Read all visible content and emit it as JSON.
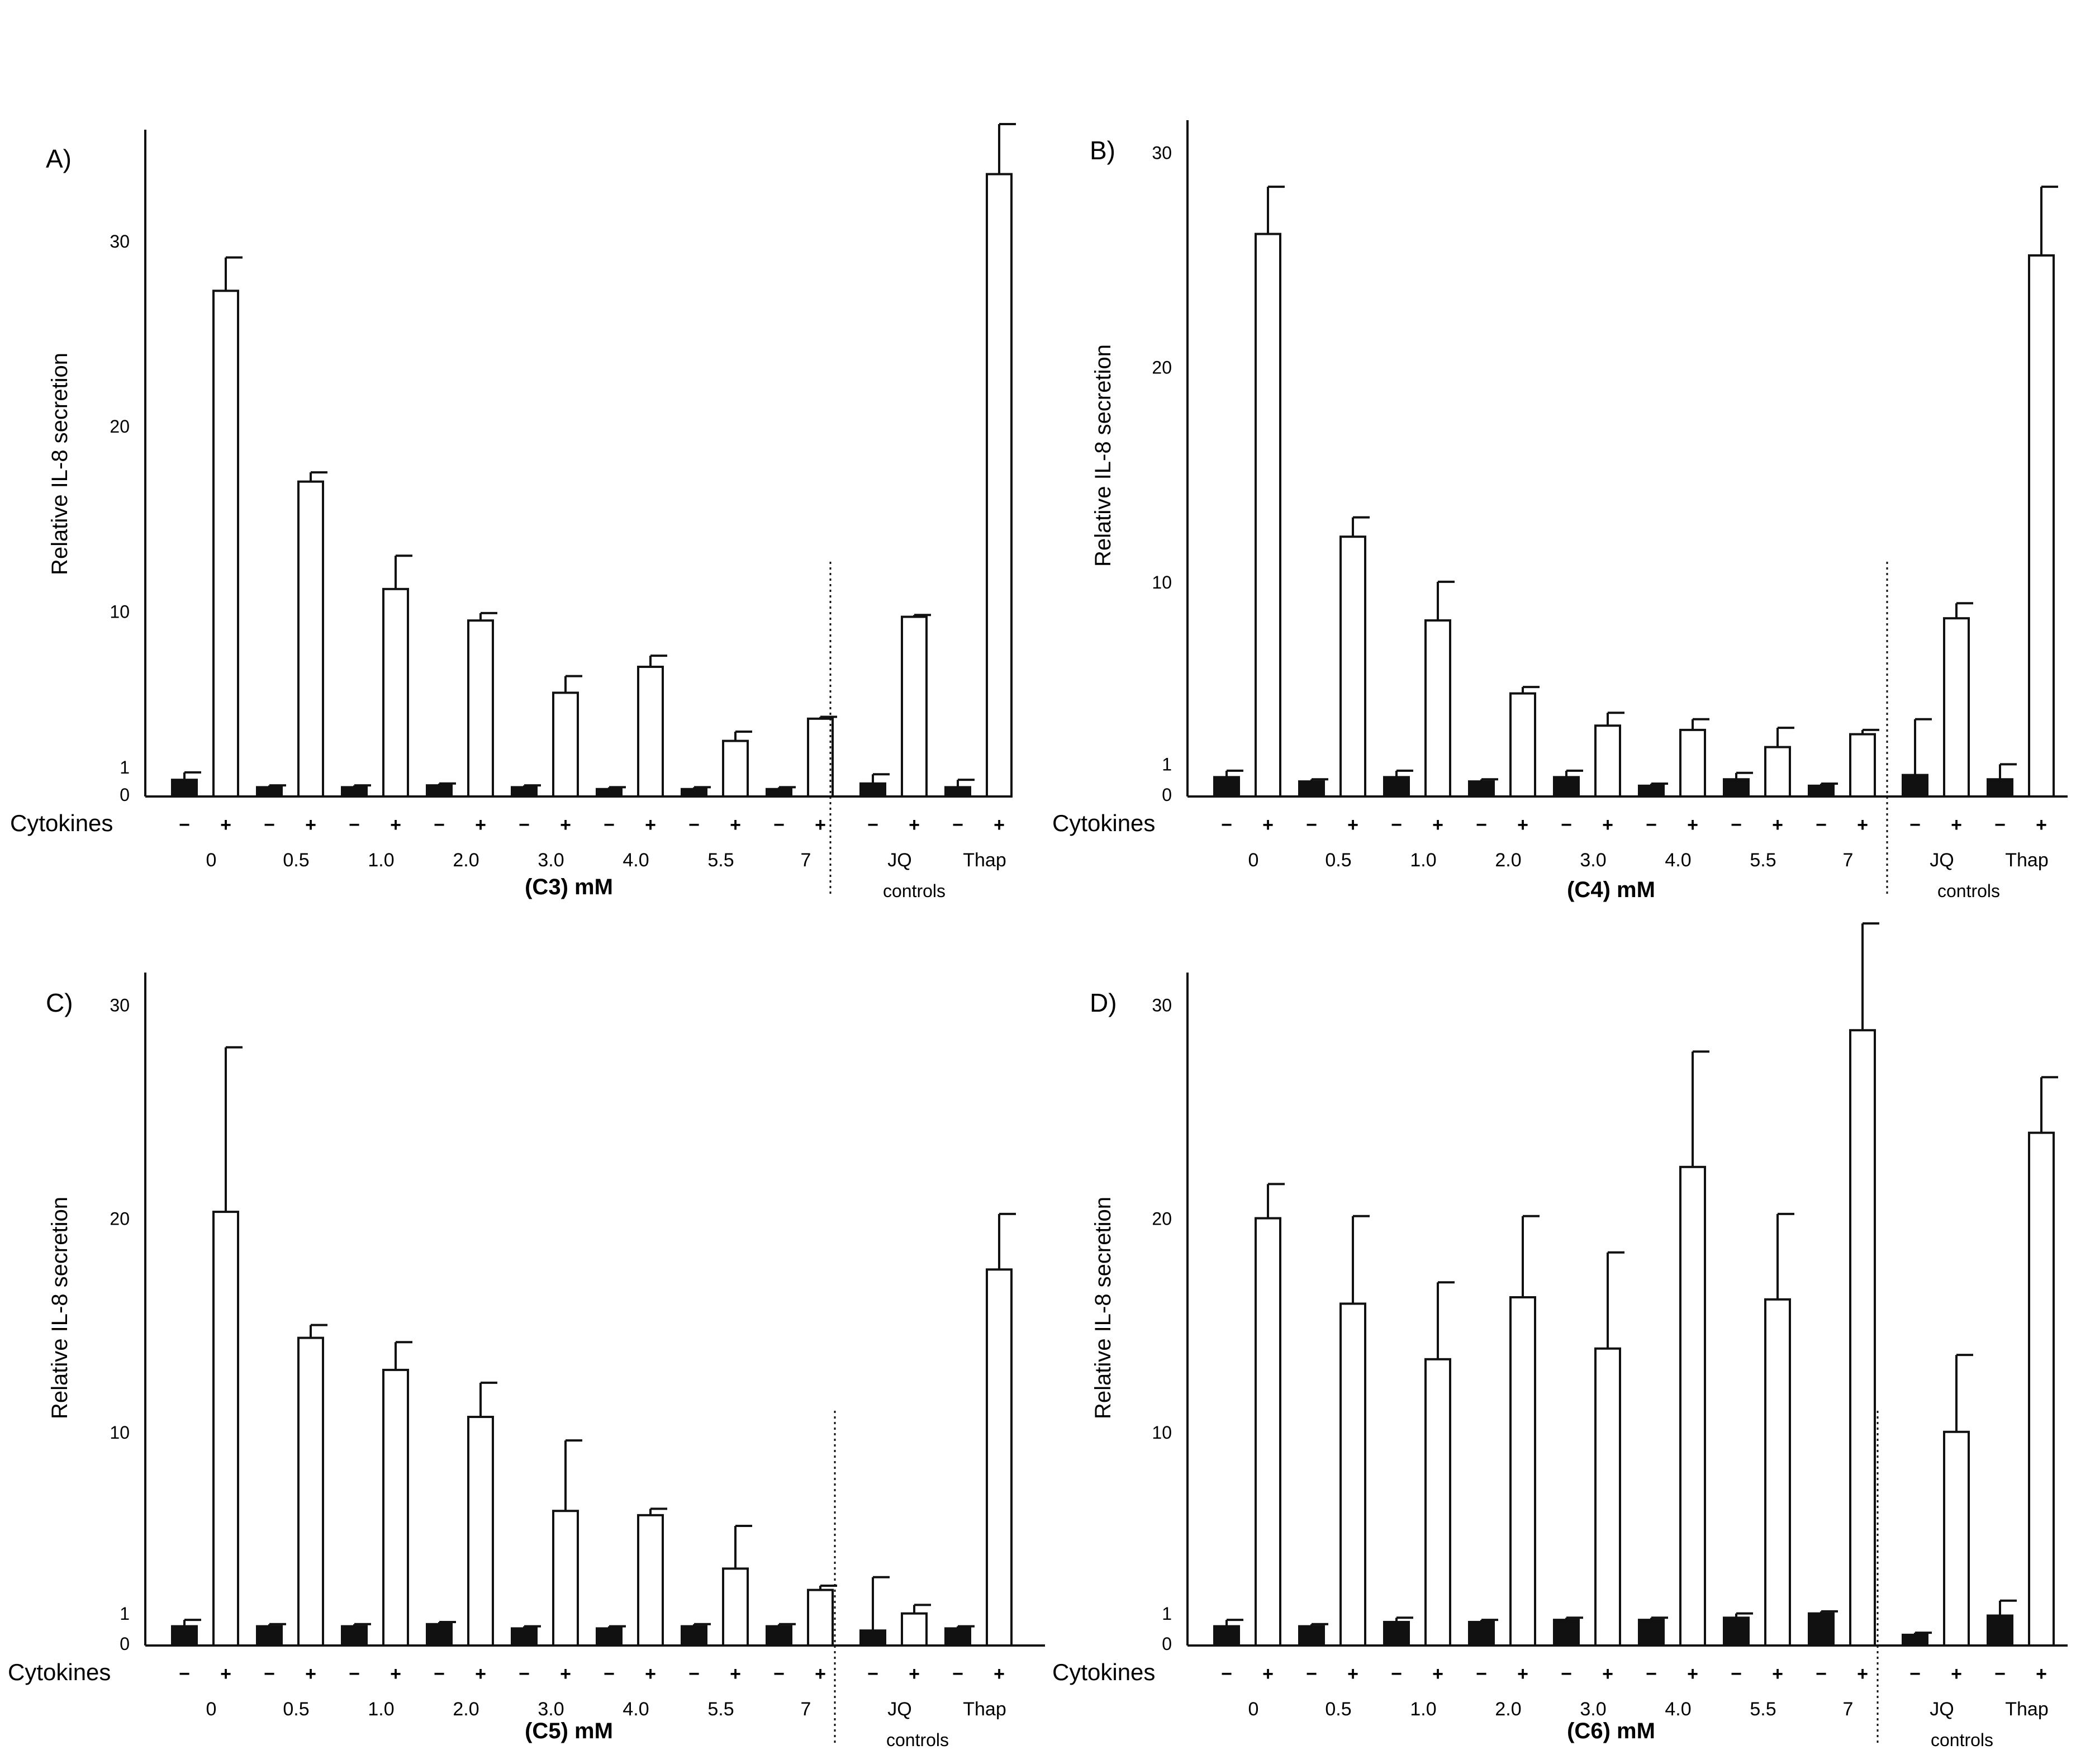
{
  "chart_data": [
    {
      "type": "bar",
      "panel": "A)",
      "ylabel": "Relative IL-8 secretion",
      "xlabel": "(C3) mM",
      "yticks": [
        0,
        1,
        10,
        20,
        30
      ],
      "ylim": [
        0,
        36
      ],
      "categories": [
        "0",
        "0.5",
        "1.0",
        "2.0",
        "3.0",
        "4.0",
        "5.5",
        "7",
        "JQ",
        "Thap"
      ],
      "row_label": "Cytokines",
      "sign_labels": [
        "−",
        "+"
      ],
      "group_label": "controls",
      "series": [
        {
          "values": [
            0.9,
            0.5,
            0.5,
            0.6,
            0.5,
            0.4,
            0.4,
            0.4,
            0.7,
            0.5
          ],
          "errors": [
            0.4,
            0.1,
            0.1,
            0.1,
            0.1,
            0.1,
            0.1,
            0.1,
            0.5,
            0.4
          ],
          "fill": "black"
        },
        {
          "values": [
            27.3,
            17.0,
            11.2,
            9.5,
            5.6,
            7.0,
            3.0,
            4.2,
            9.7,
            33.6
          ],
          "errors": [
            1.8,
            0.5,
            1.8,
            0.4,
            0.9,
            0.6,
            0.5,
            0.1,
            0.1,
            2.7
          ],
          "fill": "white"
        }
      ]
    },
    {
      "type": "bar",
      "panel": "B)",
      "ylabel": "Relative IL-8 secretion",
      "xlabel": "(C4) mM",
      "yticks": [
        0,
        1,
        10,
        20,
        30
      ],
      "ylim": [
        0,
        31.5
      ],
      "categories": [
        "0",
        "0.5",
        "1.0",
        "2.0",
        "3.0",
        "4.0",
        "5.5",
        "7",
        "JQ",
        "Thap"
      ],
      "row_label": "Cytokines",
      "sign_labels": [
        "−",
        "+"
      ],
      "group_label": "controls",
      "series": [
        {
          "values": [
            0.9,
            0.7,
            0.9,
            0.7,
            0.9,
            0.5,
            0.8,
            0.5,
            1.0,
            0.8
          ],
          "errors": [
            0.3,
            0.1,
            0.3,
            0.1,
            0.3,
            0.1,
            0.3,
            0.1,
            2.6,
            0.7
          ],
          "fill": "black"
        },
        {
          "values": [
            26.2,
            12.1,
            8.2,
            4.8,
            3.3,
            3.1,
            2.3,
            2.9,
            8.3,
            25.2
          ],
          "errors": [
            2.2,
            0.9,
            1.8,
            0.3,
            0.6,
            0.5,
            0.9,
            0.2,
            0.7,
            3.2
          ],
          "fill": "white"
        }
      ]
    },
    {
      "type": "bar",
      "panel": "C)",
      "ylabel": "Relative IL-8 secretion",
      "xlabel": "(C5) mM",
      "yticks": [
        0,
        1,
        10,
        20,
        30
      ],
      "ylim": [
        0,
        31.5
      ],
      "categories": [
        "0",
        "0.5",
        "1.0",
        "2.0",
        "3.0",
        "4.0",
        "5.5",
        "7",
        "JQ",
        "Thap"
      ],
      "row_label": "Cytokines",
      "sign_labels": [
        "−",
        "+"
      ],
      "group_label": "controls",
      "series": [
        {
          "values": [
            0.9,
            0.9,
            0.9,
            1.0,
            0.8,
            0.8,
            0.9,
            0.9,
            0.7,
            0.8
          ],
          "errors": [
            0.3,
            0.1,
            0.1,
            0.1,
            0.1,
            0.1,
            0.1,
            0.1,
            2.5,
            0.1
          ],
          "fill": "black"
        },
        {
          "values": [
            20.3,
            14.4,
            12.9,
            10.7,
            6.3,
            6.1,
            3.6,
            2.6,
            1.5,
            17.6
          ],
          "errors": [
            7.7,
            0.6,
            1.3,
            1.6,
            3.3,
            0.3,
            2.0,
            0.2,
            0.4,
            2.6
          ],
          "fill": "white"
        }
      ]
    },
    {
      "type": "bar",
      "panel": "D)",
      "ylabel": "Relative IL-8 secretion",
      "xlabel": "(C6) mM",
      "yticks": [
        0,
        1,
        10,
        20,
        30
      ],
      "ylim": [
        0,
        31.5
      ],
      "categories": [
        "0",
        "0.5",
        "1.0",
        "2.0",
        "3.0",
        "4.0",
        "5.5",
        "7",
        "JQ",
        "Thap"
      ],
      "row_label": "Cytokines",
      "sign_labels": [
        "−",
        "+"
      ],
      "group_label": "controls",
      "series": [
        {
          "values": [
            0.9,
            0.9,
            1.1,
            1.1,
            1.2,
            1.2,
            1.3,
            1.5,
            0.5,
            1.4
          ],
          "errors": [
            0.3,
            0.1,
            0.2,
            0.1,
            0.1,
            0.1,
            0.2,
            0.1,
            0.1,
            0.7
          ],
          "fill": "black"
        },
        {
          "values": [
            20.0,
            16.0,
            13.4,
            16.3,
            13.9,
            22.4,
            16.2,
            28.8,
            10.0,
            24.0
          ],
          "errors": [
            1.6,
            4.1,
            3.6,
            3.8,
            4.5,
            5.4,
            4.0,
            5.0,
            3.6,
            2.6
          ],
          "fill": "white"
        }
      ]
    }
  ]
}
